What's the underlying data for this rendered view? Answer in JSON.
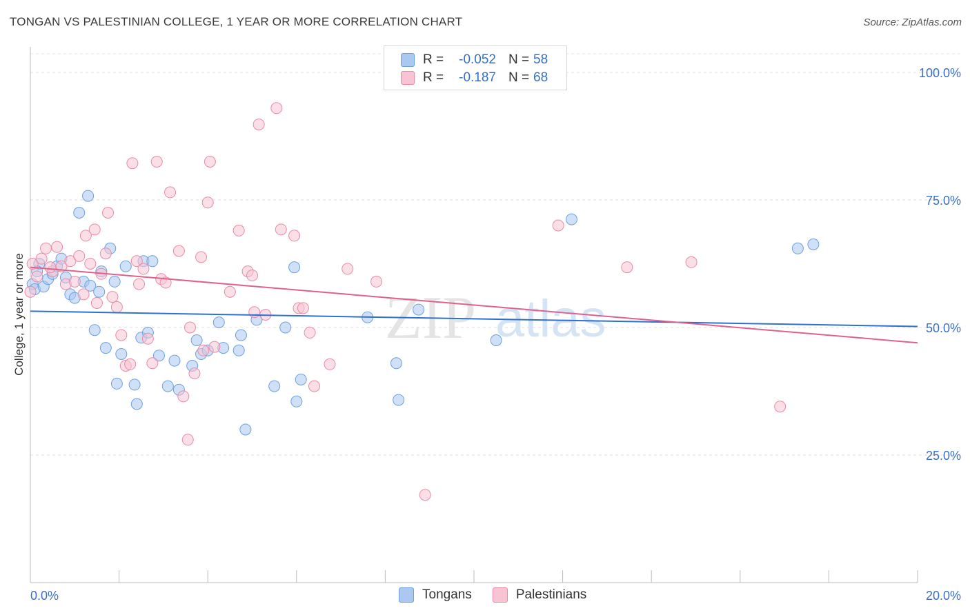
{
  "title": "TONGAN VS PALESTINIAN COLLEGE, 1 YEAR OR MORE CORRELATION CHART",
  "source": "Source: ZipAtlas.com",
  "watermark": {
    "zip": "ZIP",
    "atlas": "atlas"
  },
  "legend": {
    "rows": [
      {
        "r_label": "R =",
        "r_value": "-0.052",
        "n_label": "N =",
        "n_value": "58",
        "color": "#aac8f0",
        "border": "#6d9fe0"
      },
      {
        "r_label": "R =",
        "r_value": "-0.187",
        "n_label": "N =",
        "n_value": "68",
        "color": "#f8c4d4",
        "border": "#e88aa6"
      }
    ]
  },
  "bottom_legend": [
    {
      "label": "Tongans",
      "color": "#aac8f0",
      "border": "#6d9fe0"
    },
    {
      "label": "Palestinians",
      "color": "#f8c4d4",
      "border": "#e88aa6"
    }
  ],
  "chart_data": {
    "type": "scatter",
    "title": "TONGAN VS PALESTINIAN COLLEGE, 1 YEAR OR MORE CORRELATION CHART",
    "xlabel": "",
    "ylabel": "College, 1 year or more",
    "xlim": [
      0,
      20
    ],
    "ylim": [
      0,
      105
    ],
    "x_tick_labels": [
      "0.0%",
      "20.0%"
    ],
    "y_ticks": [
      25,
      50,
      75,
      100
    ],
    "y_tick_labels": [
      "25.0%",
      "50.0%",
      "75.0%",
      "100.0%"
    ],
    "grid": true,
    "series": [
      {
        "name": "Tongans",
        "color": "#6d9fe0",
        "fill": "#aac8f0",
        "trend": {
          "x": [
            0,
            20
          ],
          "y": [
            53.2,
            50.2
          ]
        },
        "points": [
          [
            0.05,
            58.5
          ],
          [
            0.1,
            57.5
          ],
          [
            0.2,
            62.5
          ],
          [
            0.3,
            58.0
          ],
          [
            0.4,
            59.5
          ],
          [
            0.5,
            60.5
          ],
          [
            0.6,
            62.0
          ],
          [
            0.7,
            63.5
          ],
          [
            0.8,
            59.8
          ],
          [
            0.9,
            56.5
          ],
          [
            1.0,
            55.8
          ],
          [
            1.1,
            72.5
          ],
          [
            1.2,
            59.0
          ],
          [
            1.3,
            75.8
          ],
          [
            1.35,
            58.2
          ],
          [
            1.45,
            49.5
          ],
          [
            1.55,
            57.0
          ],
          [
            1.6,
            61.0
          ],
          [
            1.7,
            46.0
          ],
          [
            1.8,
            65.5
          ],
          [
            1.9,
            59.0
          ],
          [
            1.95,
            39.0
          ],
          [
            2.05,
            44.8
          ],
          [
            2.15,
            62.0
          ],
          [
            2.35,
            38.8
          ],
          [
            2.4,
            35.0
          ],
          [
            2.5,
            48.0
          ],
          [
            2.55,
            63.0
          ],
          [
            2.65,
            49.0
          ],
          [
            2.75,
            63.0
          ],
          [
            2.9,
            44.5
          ],
          [
            3.1,
            38.5
          ],
          [
            3.25,
            43.5
          ],
          [
            3.35,
            37.8
          ],
          [
            3.65,
            42.5
          ],
          [
            3.75,
            47.5
          ],
          [
            3.85,
            44.8
          ],
          [
            4.0,
            45.5
          ],
          [
            4.25,
            51.0
          ],
          [
            4.35,
            46.0
          ],
          [
            4.7,
            45.5
          ],
          [
            4.75,
            48.5
          ],
          [
            4.85,
            30.0
          ],
          [
            5.1,
            51.5
          ],
          [
            5.5,
            38.5
          ],
          [
            5.75,
            50.0
          ],
          [
            5.95,
            61.8
          ],
          [
            6.0,
            35.5
          ],
          [
            6.1,
            39.8
          ],
          [
            7.6,
            52.0
          ],
          [
            8.25,
            43.0
          ],
          [
            8.3,
            35.8
          ],
          [
            8.75,
            53.5
          ],
          [
            10.5,
            47.5
          ],
          [
            12.2,
            71.2
          ],
          [
            17.3,
            65.5
          ],
          [
            17.65,
            66.3
          ],
          [
            0.15,
            61.0
          ]
        ]
      },
      {
        "name": "Palestinians",
        "color": "#e88aa6",
        "fill": "#f8c4d4",
        "trend": {
          "x": [
            0,
            20
          ],
          "y": [
            61.8,
            47.0
          ]
        },
        "points": [
          [
            0.05,
            62.5
          ],
          [
            0.15,
            60.0
          ],
          [
            0.25,
            63.5
          ],
          [
            0.35,
            65.5
          ],
          [
            0.5,
            61.0
          ],
          [
            0.6,
            65.8
          ],
          [
            0.7,
            62.0
          ],
          [
            0.8,
            58.5
          ],
          [
            0.9,
            63.0
          ],
          [
            1.0,
            59.0
          ],
          [
            1.1,
            64.0
          ],
          [
            1.2,
            56.5
          ],
          [
            1.25,
            68.0
          ],
          [
            1.35,
            62.5
          ],
          [
            1.45,
            69.2
          ],
          [
            1.5,
            54.8
          ],
          [
            1.6,
            60.5
          ],
          [
            1.7,
            64.5
          ],
          [
            1.75,
            72.5
          ],
          [
            1.85,
            56.0
          ],
          [
            1.95,
            54.0
          ],
          [
            2.05,
            48.5
          ],
          [
            2.15,
            42.5
          ],
          [
            2.25,
            42.8
          ],
          [
            2.3,
            82.2
          ],
          [
            2.4,
            63.0
          ],
          [
            2.45,
            58.5
          ],
          [
            2.55,
            61.5
          ],
          [
            2.65,
            47.8
          ],
          [
            2.75,
            43.0
          ],
          [
            2.85,
            82.5
          ],
          [
            2.95,
            59.5
          ],
          [
            3.05,
            58.8
          ],
          [
            3.15,
            76.5
          ],
          [
            3.35,
            65.0
          ],
          [
            3.45,
            36.5
          ],
          [
            3.55,
            28.0
          ],
          [
            3.6,
            50.0
          ],
          [
            3.7,
            41.0
          ],
          [
            3.85,
            63.8
          ],
          [
            3.9,
            45.5
          ],
          [
            4.0,
            74.5
          ],
          [
            4.05,
            82.5
          ],
          [
            4.15,
            46.2
          ],
          [
            4.5,
            57.0
          ],
          [
            4.7,
            69.0
          ],
          [
            4.9,
            61.0
          ],
          [
            5.0,
            60.2
          ],
          [
            5.05,
            53.0
          ],
          [
            5.15,
            89.8
          ],
          [
            5.3,
            52.5
          ],
          [
            5.55,
            93.0
          ],
          [
            5.65,
            69.2
          ],
          [
            5.95,
            68.0
          ],
          [
            6.05,
            53.8
          ],
          [
            6.15,
            53.8
          ],
          [
            6.3,
            49.0
          ],
          [
            6.4,
            38.5
          ],
          [
            6.75,
            42.8
          ],
          [
            7.15,
            61.5
          ],
          [
            7.8,
            59.0
          ],
          [
            8.9,
            17.2
          ],
          [
            11.9,
            70.0
          ],
          [
            13.45,
            61.8
          ],
          [
            14.9,
            62.8
          ],
          [
            16.9,
            34.5
          ],
          [
            0.0,
            57.0
          ],
          [
            0.45,
            61.8
          ]
        ]
      }
    ]
  }
}
